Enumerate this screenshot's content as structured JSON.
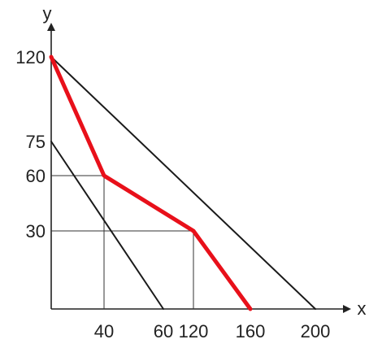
{
  "chart_data": {
    "type": "line",
    "xlabel": "x",
    "ylabel": "y",
    "x_ticks": [
      "40",
      "60",
      "120",
      "160",
      "200"
    ],
    "y_ticks": [
      "30",
      "60",
      "75",
      "120"
    ],
    "series": [
      {
        "points": [
          [
            0,
            120
          ],
          [
            200,
            0
          ]
        ],
        "color": "#1a1a1a"
      },
      {
        "points": [
          [
            0,
            75
          ],
          [
            60,
            0
          ]
        ],
        "color": "#1a1a1a"
      },
      {
        "points": [
          [
            0,
            120
          ],
          [
            40,
            60
          ],
          [
            120,
            30
          ],
          [
            160,
            0
          ]
        ],
        "color": "#e8101a",
        "highlight": true
      }
    ],
    "guides": [
      {
        "from": [
          0,
          60
        ],
        "to": [
          40,
          60
        ]
      },
      {
        "from": [
          40,
          60
        ],
        "to": [
          40,
          0
        ]
      },
      {
        "from": [
          0,
          30
        ],
        "to": [
          120,
          30
        ]
      },
      {
        "from": [
          120,
          30
        ],
        "to": [
          120,
          0
        ]
      }
    ],
    "grid": false,
    "legend": "none"
  }
}
